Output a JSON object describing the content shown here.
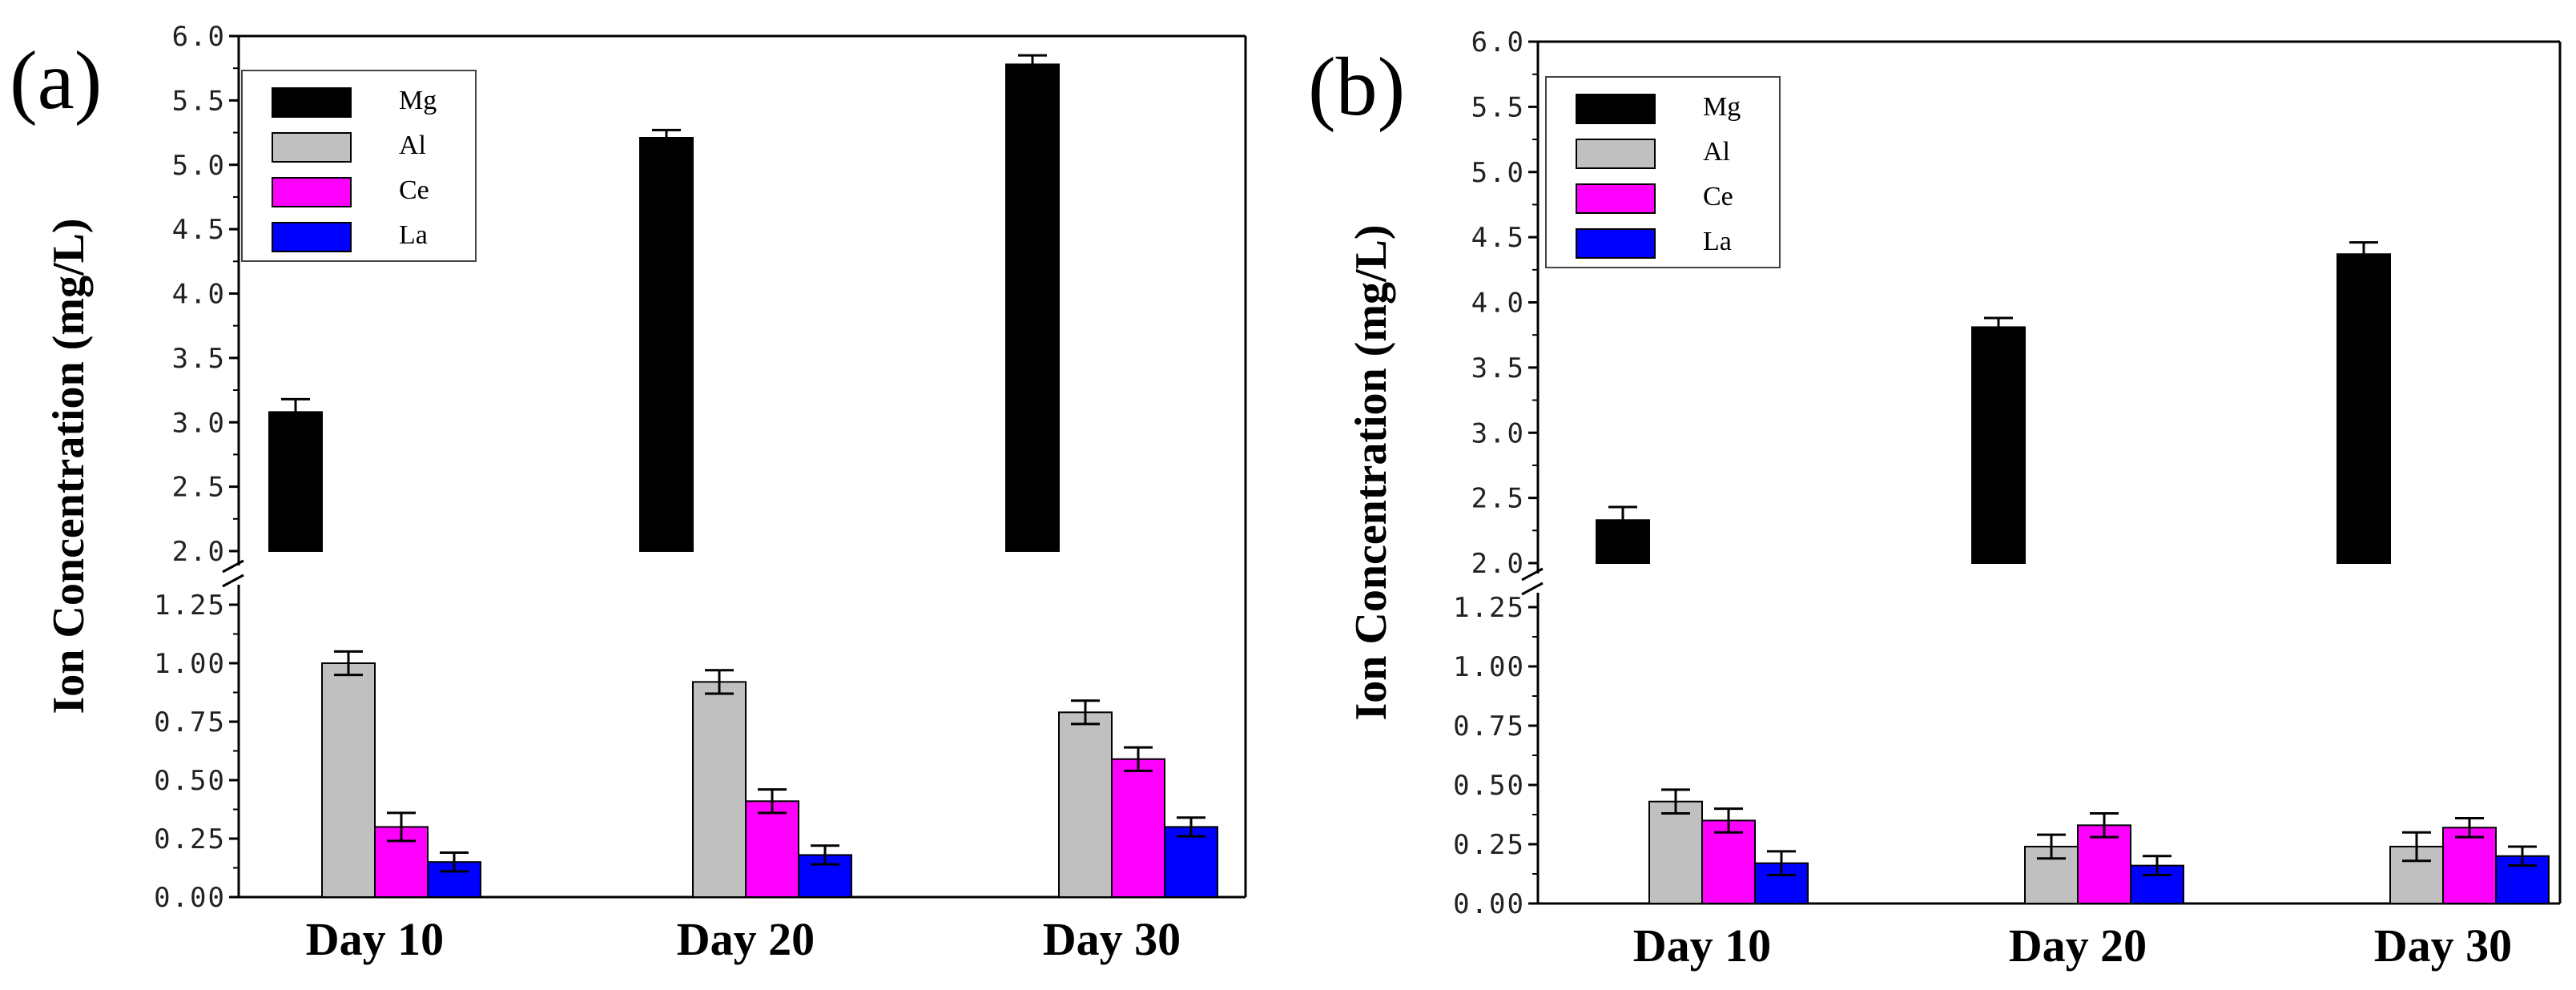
{
  "chart_data": [
    {
      "type": "bar",
      "panel_label": "(a)",
      "ylabel": "Ion Concentration (mg/L)",
      "categories": [
        "Day 10",
        "Day 20",
        "Day 30"
      ],
      "axis_break": true,
      "ylim_lower": [
        0,
        1.25
      ],
      "ylim_upper": [
        2.0,
        6.0
      ],
      "yticks_lower": [
        "0.00",
        "0.25",
        "0.50",
        "0.75",
        "1.00",
        "1.25"
      ],
      "yticks_upper": [
        "2.0",
        "2.5",
        "3.0",
        "3.5",
        "4.0",
        "4.5",
        "5.0",
        "5.5",
        "6.0"
      ],
      "legend_position": "top-left",
      "series": [
        {
          "name": "Mg",
          "color": "#000000",
          "values": [
            3.08,
            5.21,
            5.78
          ],
          "errors": [
            0.1,
            0.06,
            0.07
          ]
        },
        {
          "name": "Al",
          "color": "#c0c0c0",
          "values": [
            1.0,
            0.92,
            0.79
          ],
          "errors": [
            0.05,
            0.05,
            0.05
          ]
        },
        {
          "name": "Ce",
          "color": "#ff00ff",
          "values": [
            0.3,
            0.41,
            0.59
          ],
          "errors": [
            0.06,
            0.05,
            0.05
          ]
        },
        {
          "name": "La",
          "color": "#0000ff",
          "values": [
            0.15,
            0.18,
            0.3
          ],
          "errors": [
            0.04,
            0.04,
            0.04
          ]
        }
      ]
    },
    {
      "type": "bar",
      "panel_label": "(b)",
      "ylabel": "Ion Concentration (mg/L)",
      "categories": [
        "Day 10",
        "Day 20",
        "Day 30"
      ],
      "axis_break": true,
      "ylim_lower": [
        0,
        1.25
      ],
      "ylim_upper": [
        2.0,
        6.0
      ],
      "yticks_lower": [
        "0.00",
        "0.25",
        "0.50",
        "0.75",
        "1.00",
        "1.25"
      ],
      "yticks_upper": [
        "2.0",
        "2.5",
        "3.0",
        "3.5",
        "4.0",
        "4.5",
        "5.0",
        "5.5",
        "6.0"
      ],
      "legend_position": "top-left",
      "series": [
        {
          "name": "Mg",
          "color": "#000000",
          "values": [
            2.33,
            3.81,
            4.37
          ],
          "errors": [
            0.1,
            0.07,
            0.09
          ]
        },
        {
          "name": "Al",
          "color": "#c0c0c0",
          "values": [
            0.43,
            0.24,
            0.24
          ],
          "errors": [
            0.05,
            0.05,
            0.06
          ]
        },
        {
          "name": "Ce",
          "color": "#ff00ff",
          "values": [
            0.35,
            0.33,
            0.32
          ],
          "errors": [
            0.05,
            0.05,
            0.04
          ]
        },
        {
          "name": "La",
          "color": "#0000ff",
          "values": [
            0.17,
            0.16,
            0.2
          ],
          "errors": [
            0.05,
            0.04,
            0.04
          ]
        }
      ]
    }
  ]
}
